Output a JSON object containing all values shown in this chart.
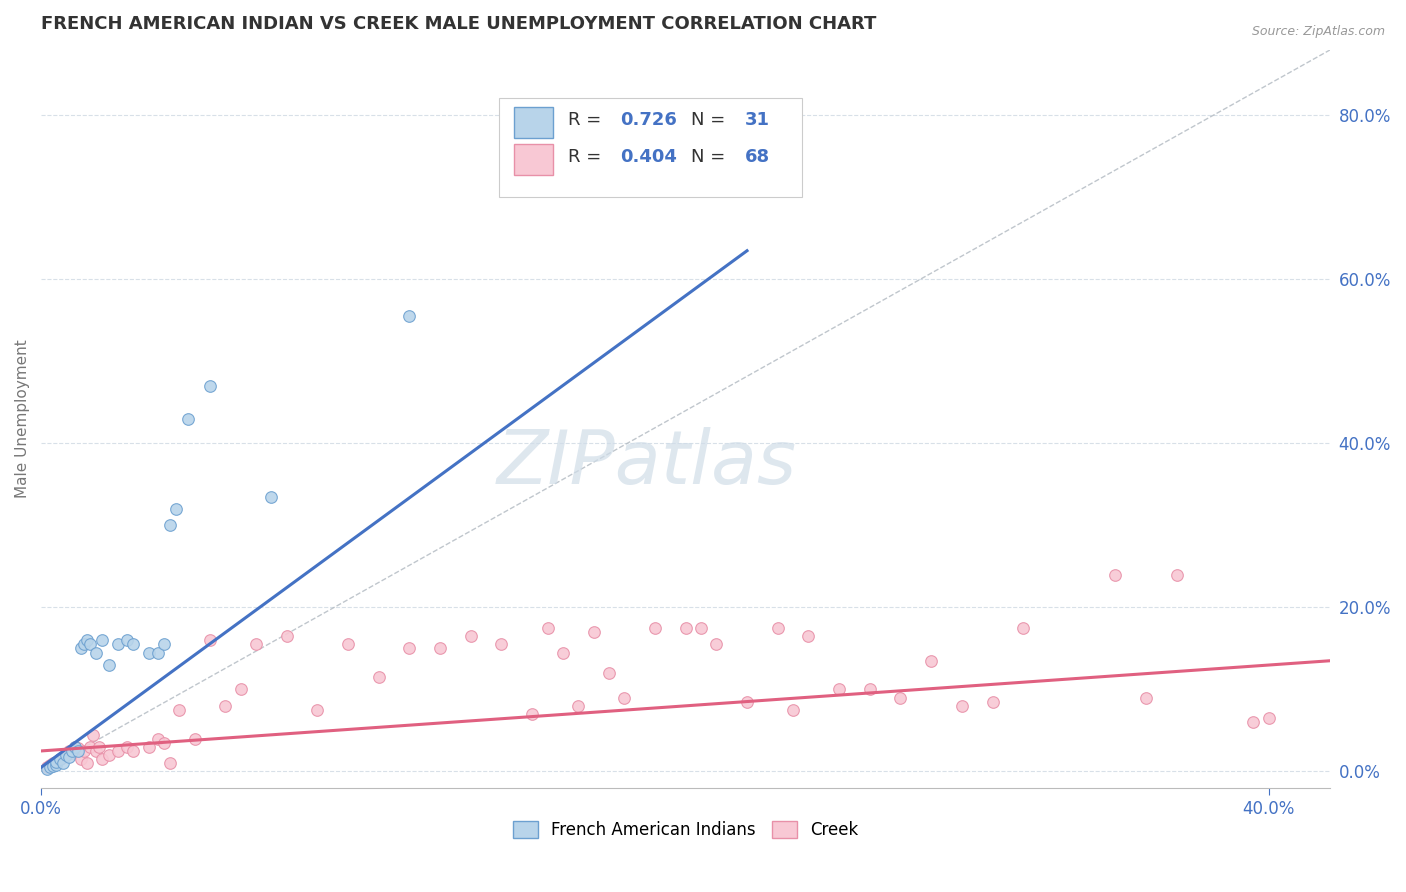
{
  "title": "FRENCH AMERICAN INDIAN VS CREEK MALE UNEMPLOYMENT CORRELATION CHART",
  "source": "Source: ZipAtlas.com",
  "ylabel": "Male Unemployment",
  "xlim": [
    0.0,
    0.42
  ],
  "ylim": [
    -0.02,
    0.88
  ],
  "x_ticks": [
    0.0,
    0.4
  ],
  "x_tick_labels": [
    "0.0%",
    "40.0%"
  ],
  "y_ticks_right": [
    0.0,
    0.2,
    0.4,
    0.6,
    0.8
  ],
  "y_tick_labels_right": [
    "0.0%",
    "20.0%",
    "40.0%",
    "60.0%",
    "80.0%"
  ],
  "blue_color": "#b8d4ea",
  "blue_edge_color": "#6ca0d0",
  "pink_color": "#f8c8d4",
  "pink_edge_color": "#e890a8",
  "blue_line_color": "#4472c4",
  "pink_line_color": "#e06080",
  "ref_line_color": "#b0b8c0",
  "watermark_color": "#d0dde8",
  "legend_R_blue": "R = 0.726",
  "legend_N_blue": "N = 31",
  "legend_R_pink": "R = 0.404",
  "legend_N_pink": "N = 68",
  "legend_label_blue": "French American Indians",
  "legend_label_pink": "Creek",
  "blue_x": [
    0.002,
    0.003,
    0.004,
    0.005,
    0.005,
    0.006,
    0.007,
    0.008,
    0.009,
    0.01,
    0.011,
    0.012,
    0.013,
    0.014,
    0.015,
    0.016,
    0.018,
    0.02,
    0.022,
    0.025,
    0.028,
    0.03,
    0.035,
    0.038,
    0.04,
    0.042,
    0.044,
    0.048,
    0.055,
    0.075,
    0.12
  ],
  "blue_y": [
    0.003,
    0.005,
    0.007,
    0.008,
    0.012,
    0.015,
    0.01,
    0.02,
    0.018,
    0.025,
    0.03,
    0.025,
    0.15,
    0.155,
    0.16,
    0.155,
    0.145,
    0.16,
    0.13,
    0.155,
    0.16,
    0.155,
    0.145,
    0.145,
    0.155,
    0.3,
    0.32,
    0.43,
    0.47,
    0.335,
    0.555
  ],
  "pink_x": [
    0.002,
    0.003,
    0.004,
    0.005,
    0.006,
    0.007,
    0.008,
    0.009,
    0.01,
    0.011,
    0.012,
    0.013,
    0.014,
    0.015,
    0.016,
    0.017,
    0.018,
    0.019,
    0.02,
    0.022,
    0.025,
    0.028,
    0.03,
    0.035,
    0.038,
    0.04,
    0.042,
    0.045,
    0.05,
    0.055,
    0.06,
    0.065,
    0.07,
    0.08,
    0.09,
    0.1,
    0.11,
    0.12,
    0.13,
    0.14,
    0.15,
    0.16,
    0.165,
    0.17,
    0.175,
    0.18,
    0.185,
    0.19,
    0.2,
    0.21,
    0.215,
    0.22,
    0.23,
    0.24,
    0.245,
    0.25,
    0.26,
    0.27,
    0.28,
    0.29,
    0.3,
    0.31,
    0.32,
    0.35,
    0.36,
    0.37,
    0.395,
    0.4
  ],
  "pink_y": [
    0.005,
    0.008,
    0.01,
    0.012,
    0.015,
    0.018,
    0.02,
    0.025,
    0.022,
    0.03,
    0.028,
    0.015,
    0.025,
    0.01,
    0.03,
    0.045,
    0.025,
    0.03,
    0.015,
    0.02,
    0.025,
    0.03,
    0.025,
    0.03,
    0.04,
    0.035,
    0.01,
    0.075,
    0.04,
    0.16,
    0.08,
    0.1,
    0.155,
    0.165,
    0.075,
    0.155,
    0.115,
    0.15,
    0.15,
    0.165,
    0.155,
    0.07,
    0.175,
    0.145,
    0.08,
    0.17,
    0.12,
    0.09,
    0.175,
    0.175,
    0.175,
    0.155,
    0.085,
    0.175,
    0.075,
    0.165,
    0.1,
    0.1,
    0.09,
    0.135,
    0.08,
    0.085,
    0.175,
    0.24,
    0.09,
    0.24,
    0.06,
    0.065
  ],
  "blue_line_x": [
    0.0,
    0.23
  ],
  "blue_line_y": [
    0.005,
    0.635
  ],
  "pink_line_x": [
    0.0,
    0.42
  ],
  "pink_line_y": [
    0.025,
    0.135
  ],
  "ref_line_x": [
    0.0,
    0.42
  ],
  "ref_line_y": [
    0.0,
    0.88
  ],
  "background_color": "#ffffff",
  "grid_color": "#d8e0e8",
  "title_color": "#333333",
  "title_fontsize": 13,
  "axis_label_color": "#777777",
  "tick_color": "#4472c4",
  "watermark_text": "ZIPatlas"
}
